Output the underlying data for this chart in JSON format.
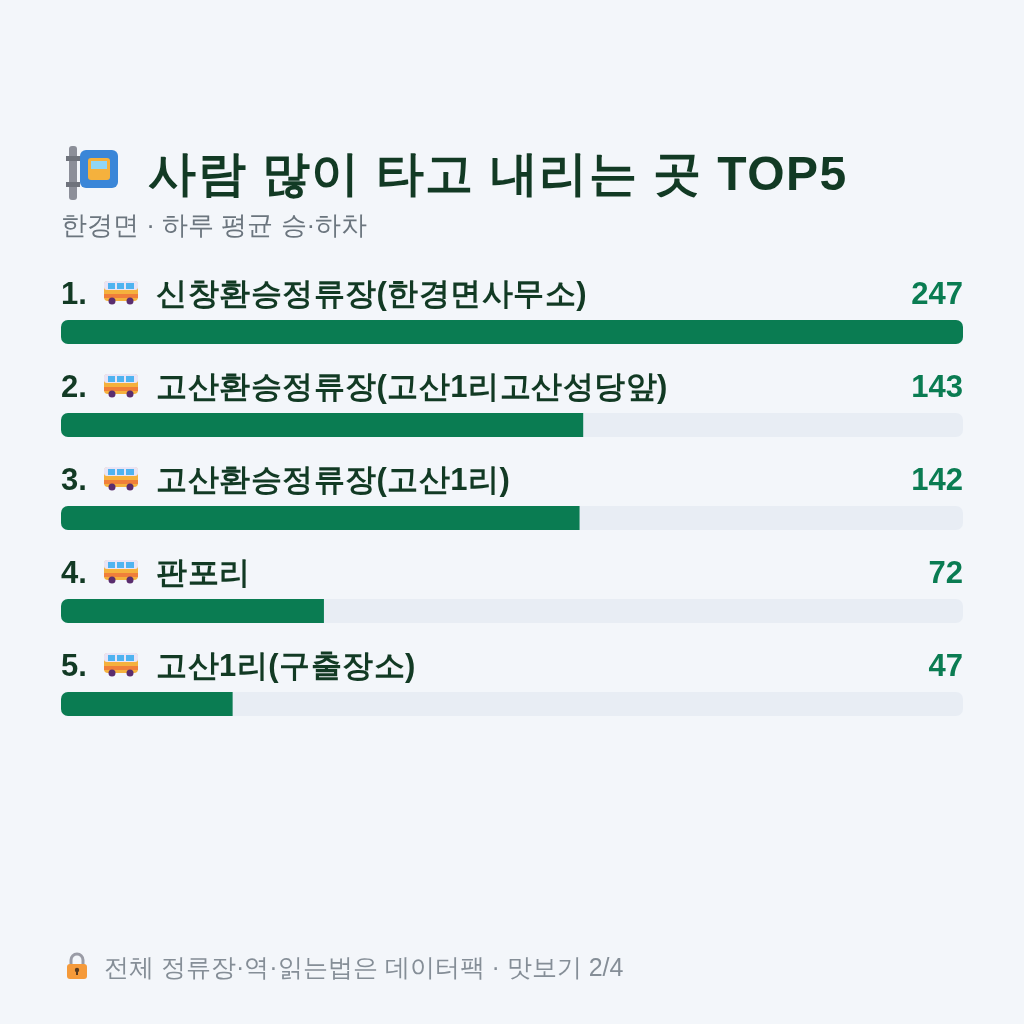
{
  "chart_data": {
    "type": "bar",
    "orientation": "horizontal",
    "title": "사람 많이 타고 내리는 곳 TOP5",
    "subtitle": "한경면 · 하루 평균 승·하차",
    "categories": [
      "1. 신창환승정류장(한경면사무소)",
      "2. 고산환승정류장(고산1리고산성당앞)",
      "3. 고산환승정류장(고산1리)",
      "4. 판포리",
      "5. 고산1리(구출장소)"
    ],
    "values": [
      247,
      143,
      142,
      72,
      47
    ],
    "color": "#0a7c52",
    "data_labels": true,
    "annotations": [
      "전체 정류장·역·읽는법은 데이터팩 · 맛보기 2/4"
    ]
  }
}
